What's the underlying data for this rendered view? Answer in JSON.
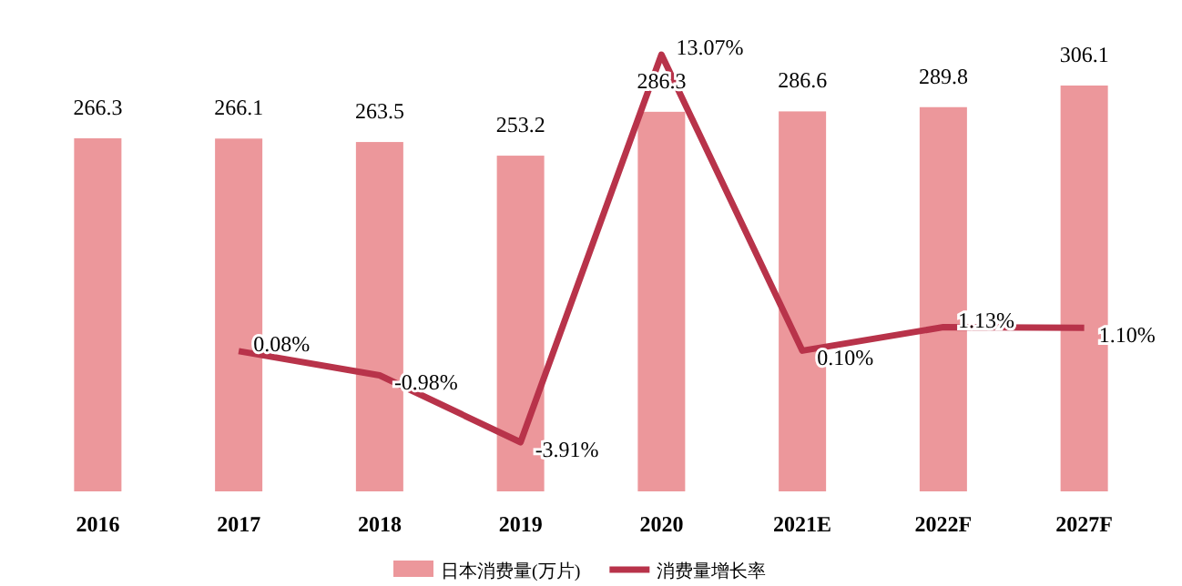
{
  "chart_data": {
    "type": "bar",
    "categories": [
      "2016",
      "2017",
      "2018",
      "2019",
      "2020",
      "2021E",
      "2022F",
      "2027F"
    ],
    "series": [
      {
        "name": "日本消费量(万片)",
        "color": "#ec979b",
        "values": [
          266.3,
          266.1,
          263.5,
          253.2,
          286.3,
          286.6,
          289.8,
          306.1
        ],
        "value_labels": [
          "266.3",
          "266.1",
          "263.5",
          "253.2",
          "286.3",
          "286.6",
          "289.8",
          "306.1"
        ]
      },
      {
        "name": "消费量增长率",
        "type": "line",
        "axis": "y2",
        "color": "#b8334a",
        "values": [
          null,
          0.08,
          -0.98,
          -3.91,
          13.07,
          0.1,
          1.13,
          1.1
        ],
        "value_labels": [
          null,
          "0.08%",
          "-0.98%",
          "-3.91%",
          "13.07%",
          "0.10%",
          "1.13%",
          "1.10%"
        ]
      }
    ],
    "legend": "bottom",
    "grid": false
  }
}
